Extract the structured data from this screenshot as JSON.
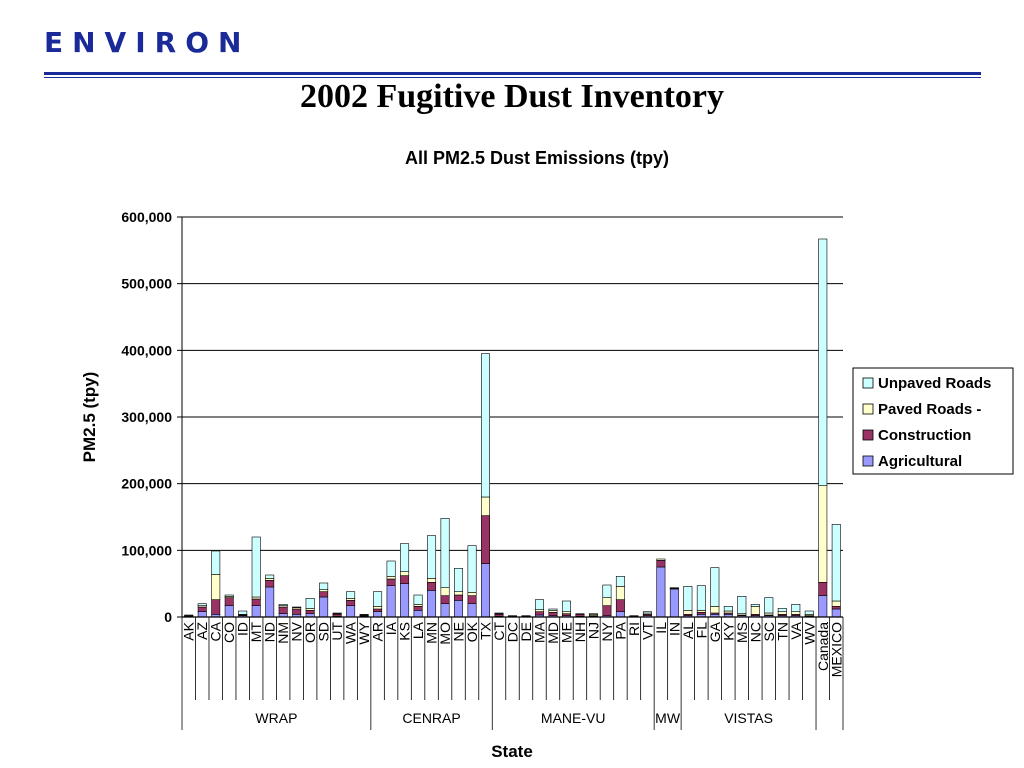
{
  "header": {
    "logo_text": "ENVIRON",
    "slide_title": "2002 Fugitive Dust Inventory"
  },
  "colors": {
    "brand": "#1a2a99",
    "unpaved": "#ccffff",
    "paved": "#ffffcc",
    "construction": "#993366",
    "agricultural": "#9999ff"
  },
  "chart_data": {
    "type": "bar",
    "stacked": true,
    "title": "All PM2.5 Dust Emissions (tpy)",
    "xlabel": "State",
    "ylabel": "PM2.5 (tpy)",
    "ylim": [
      0,
      600000
    ],
    "yticks": [
      0,
      100000,
      200000,
      300000,
      400000,
      500000,
      600000
    ],
    "ytick_labels": [
      "0",
      "100,000",
      "200,000",
      "300,000",
      "400,000",
      "500,000",
      "600,000"
    ],
    "grid": true,
    "legend_position": "right",
    "categories": [
      "AK",
      "AZ",
      "CA",
      "CO",
      "ID",
      "MT",
      "ND",
      "NM",
      "NV",
      "OR",
      "SD",
      "UT",
      "WA",
      "WY",
      "AR",
      "IA",
      "KS",
      "LA",
      "MN",
      "MO",
      "NE",
      "OK",
      "TX",
      "CT",
      "DC",
      "DE",
      "MA",
      "MD",
      "ME",
      "NH",
      "NJ",
      "NY",
      "PA",
      "RI",
      "VT",
      "IL",
      "IN",
      "AL",
      "FL",
      "GA",
      "KY",
      "MS",
      "NC",
      "SC",
      "TN",
      "VA",
      "WV",
      "Canada",
      "MEXICO"
    ],
    "groups": [
      {
        "name": "WRAP",
        "count": 14
      },
      {
        "name": "CENRAP",
        "count": 9
      },
      {
        "name": "MANE-VU",
        "count": 12
      },
      {
        "name": "MW",
        "count": 2
      },
      {
        "name": "VISTAS",
        "count": 10
      },
      {
        "name": "",
        "count": 2
      }
    ],
    "series": [
      {
        "name": "Agricultural",
        "color": "#9999ff",
        "values": [
          1000,
          8000,
          4000,
          17000,
          2000,
          17000,
          45000,
          5000,
          4000,
          5000,
          30000,
          1000,
          17000,
          1000,
          8000,
          47000,
          50000,
          10000,
          40000,
          20000,
          25000,
          20000,
          80000,
          1000,
          500,
          500,
          3000,
          2000,
          2000,
          1000,
          1000,
          2000,
          8000,
          500,
          2000,
          75000,
          42000,
          2000,
          4000,
          4000,
          4000,
          2000,
          2000,
          2000,
          2000,
          2000,
          1000,
          32000,
          12000
        ]
      },
      {
        "name": "Construction",
        "color": "#993366",
        "values": [
          500,
          7000,
          22000,
          12000,
          1000,
          10000,
          10000,
          10000,
          8000,
          5000,
          8000,
          3000,
          8000,
          1000,
          4000,
          10000,
          12000,
          6000,
          12000,
          12000,
          8000,
          12000,
          72000,
          3000,
          500,
          500,
          5000,
          5000,
          3000,
          3000,
          1000,
          15000,
          18000,
          500,
          2000,
          10000,
          1000,
          2000,
          3000,
          2000,
          2000,
          1000,
          2000,
          1000,
          2000,
          2000,
          1000,
          20000,
          4000
        ]
      },
      {
        "name": "Paved Roads -",
        "color": "#ffffcc",
        "values": [
          500,
          2000,
          38000,
          2000,
          1000,
          3000,
          3000,
          2000,
          2000,
          3000,
          3000,
          1000,
          3000,
          1000,
          4000,
          4000,
          6000,
          3000,
          6000,
          12000,
          5000,
          5000,
          28000,
          1000,
          500,
          500,
          3000,
          3000,
          3000,
          1000,
          2000,
          12000,
          20000,
          500,
          2000,
          2000,
          1000,
          6000,
          3000,
          10000,
          3000,
          2000,
          12000,
          3000,
          4000,
          4000,
          2000,
          145000,
          8000
        ]
      },
      {
        "name": "Unpaved Roads",
        "color": "#ccffff",
        "values": [
          1000,
          3000,
          35000,
          2000,
          5000,
          90000,
          5000,
          2000,
          1000,
          15000,
          10000,
          1000,
          10000,
          1000,
          22000,
          23000,
          42000,
          14000,
          64000,
          104000,
          35000,
          70000,
          215000,
          1000,
          500,
          500,
          15000,
          2000,
          16000,
          0,
          1000,
          19000,
          15000,
          500,
          2000,
          0,
          0,
          36000,
          37000,
          58000,
          7000,
          26000,
          3000,
          23000,
          5000,
          11000,
          5000,
          370000,
          115000
        ]
      }
    ]
  }
}
